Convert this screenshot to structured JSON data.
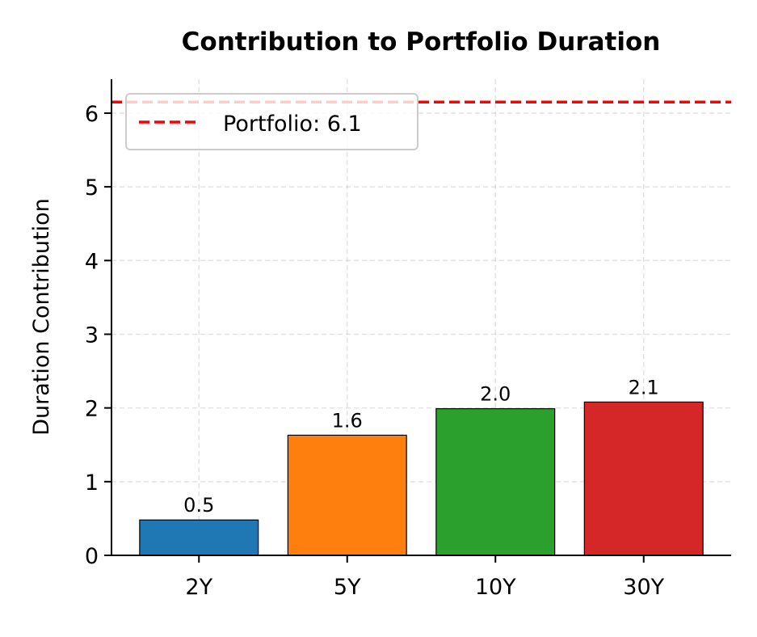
{
  "chart_data": {
    "type": "bar",
    "title": "Contribution to Portfolio Duration",
    "xlabel": "",
    "ylabel": "Duration Contribution",
    "categories": [
      "2Y",
      "5Y",
      "10Y",
      "30Y"
    ],
    "values": [
      0.48,
      1.63,
      1.99,
      2.08
    ],
    "data_labels": [
      "0.5",
      "1.6",
      "2.0",
      "2.1"
    ],
    "colors": [
      "#1f77b4",
      "#ff7f0e",
      "#2ca02c",
      "#d62728"
    ],
    "ylim": [
      0,
      6.46
    ],
    "yticks": [
      0,
      1,
      2,
      3,
      4,
      5,
      6
    ],
    "grid": true,
    "reference_line": {
      "value": 6.15,
      "label": "Portfolio: 6.1",
      "color": "#ff0000",
      "style": "dashed"
    },
    "legend": {
      "placement": "top-left",
      "entries": [
        "Portfolio: 6.1"
      ]
    }
  }
}
